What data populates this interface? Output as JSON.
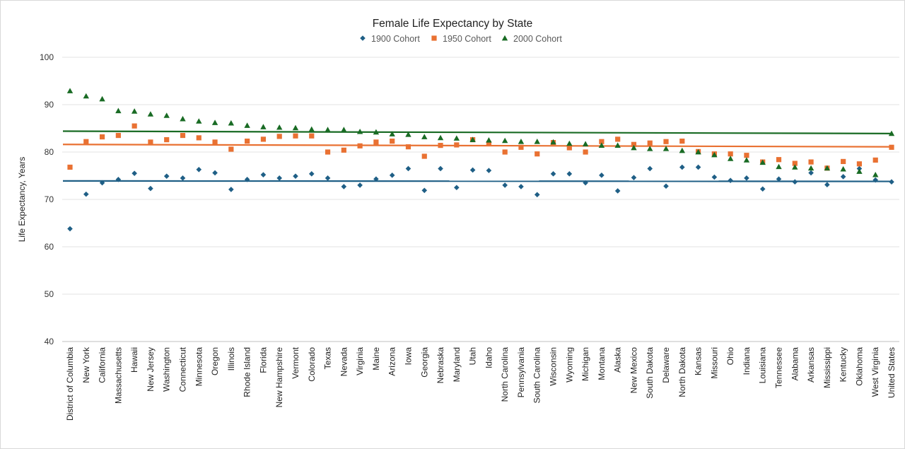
{
  "chart_data": {
    "type": "scatter",
    "title": "Female Life Expectancy by State",
    "xlabel": "",
    "ylabel": "Life Expectancy, Years",
    "ylim": [
      40,
      100
    ],
    "yticks": [
      40,
      50,
      60,
      70,
      80,
      90,
      100
    ],
    "grid": true,
    "legend_position": "top",
    "categories": [
      "District of Columbia",
      "New York",
      "California",
      "Massachusetts",
      "Hawaii",
      "New Jersey",
      "Washington",
      "Connecticut",
      "Minnesota",
      "Oregon",
      "Illinois",
      "Rhode Island",
      "Florida",
      "New Hampshire",
      "Vermont",
      "Colorado",
      "Texas",
      "Nevada",
      "Virginia",
      "Maine",
      "Arizona",
      "Iowa",
      "Georgia",
      "Nebraska",
      "Maryland",
      "Utah",
      "Idaho",
      "North Carolina",
      "Pennsylvania",
      "South Carolina",
      "Wisconsin",
      "Wyoming",
      "Michigan",
      "Montana",
      "Alaska",
      "New Mexico",
      "South Dakota",
      "Delaware",
      "North Dakota",
      "Kansas",
      "Missouri",
      "Ohio",
      "Indiana",
      "Louisiana",
      "Tennessee",
      "Alabama",
      "Arkansas",
      "Mississippi",
      "Kentucky",
      "Oklahoma",
      "West Virginia",
      "United States"
    ],
    "series": [
      {
        "name": "1900 Cohort",
        "marker": "diamond",
        "color": "#1f5f86",
        "values": [
          63.8,
          71.1,
          73.5,
          74.2,
          75.5,
          72.3,
          74.9,
          74.5,
          76.3,
          75.6,
          72.1,
          74.2,
          75.2,
          74.5,
          74.9,
          75.4,
          74.5,
          72.7,
          73.0,
          74.3,
          75.1,
          76.5,
          71.9,
          76.5,
          72.5,
          76.2,
          76.1,
          73.0,
          72.7,
          71.0,
          75.4,
          75.4,
          73.5,
          75.1,
          71.8,
          74.6,
          76.5,
          72.8,
          76.8,
          76.8,
          74.7,
          74.0,
          74.5,
          72.2,
          74.3,
          73.7,
          75.6,
          73.1,
          74.8,
          76.5,
          74.1,
          73.7
        ],
        "trendline": {
          "start": 73.9,
          "end": 73.8
        }
      },
      {
        "name": "1950 Cohort",
        "marker": "square",
        "color": "#e97132",
        "values": [
          76.8,
          82.2,
          83.2,
          83.5,
          85.5,
          82.1,
          82.6,
          83.5,
          83.0,
          82.1,
          80.6,
          82.3,
          82.7,
          83.3,
          83.4,
          83.4,
          80.0,
          80.4,
          81.3,
          82.1,
          82.3,
          81.1,
          79.1,
          81.4,
          81.5,
          82.6,
          81.8,
          80.0,
          81.0,
          79.6,
          82.0,
          80.9,
          80.0,
          82.2,
          82.7,
          81.6,
          81.9,
          82.2,
          82.3,
          80.1,
          79.6,
          79.6,
          79.3,
          77.9,
          78.4,
          77.6,
          77.9,
          76.6,
          78.0,
          77.5,
          78.3,
          81.0
        ],
        "trendline": {
          "start": 81.6,
          "end": 81.1
        }
      },
      {
        "name": "2000 Cohort",
        "marker": "triangle",
        "color": "#196b24",
        "values": [
          92.9,
          91.8,
          91.2,
          88.7,
          88.6,
          88.0,
          87.7,
          87.0,
          86.5,
          86.2,
          86.1,
          85.6,
          85.3,
          85.2,
          85.1,
          84.8,
          84.7,
          84.7,
          84.3,
          84.2,
          83.8,
          83.7,
          83.2,
          83.0,
          82.9,
          82.6,
          82.5,
          82.4,
          82.2,
          82.2,
          82.1,
          81.8,
          81.7,
          81.4,
          81.4,
          80.9,
          80.7,
          80.7,
          80.3,
          80.0,
          79.4,
          78.6,
          78.3,
          77.8,
          76.9,
          76.8,
          76.6,
          76.6,
          76.4,
          75.9,
          75.2,
          83.9
        ],
        "trendline": {
          "start": 84.4,
          "end": 83.9
        }
      }
    ]
  }
}
